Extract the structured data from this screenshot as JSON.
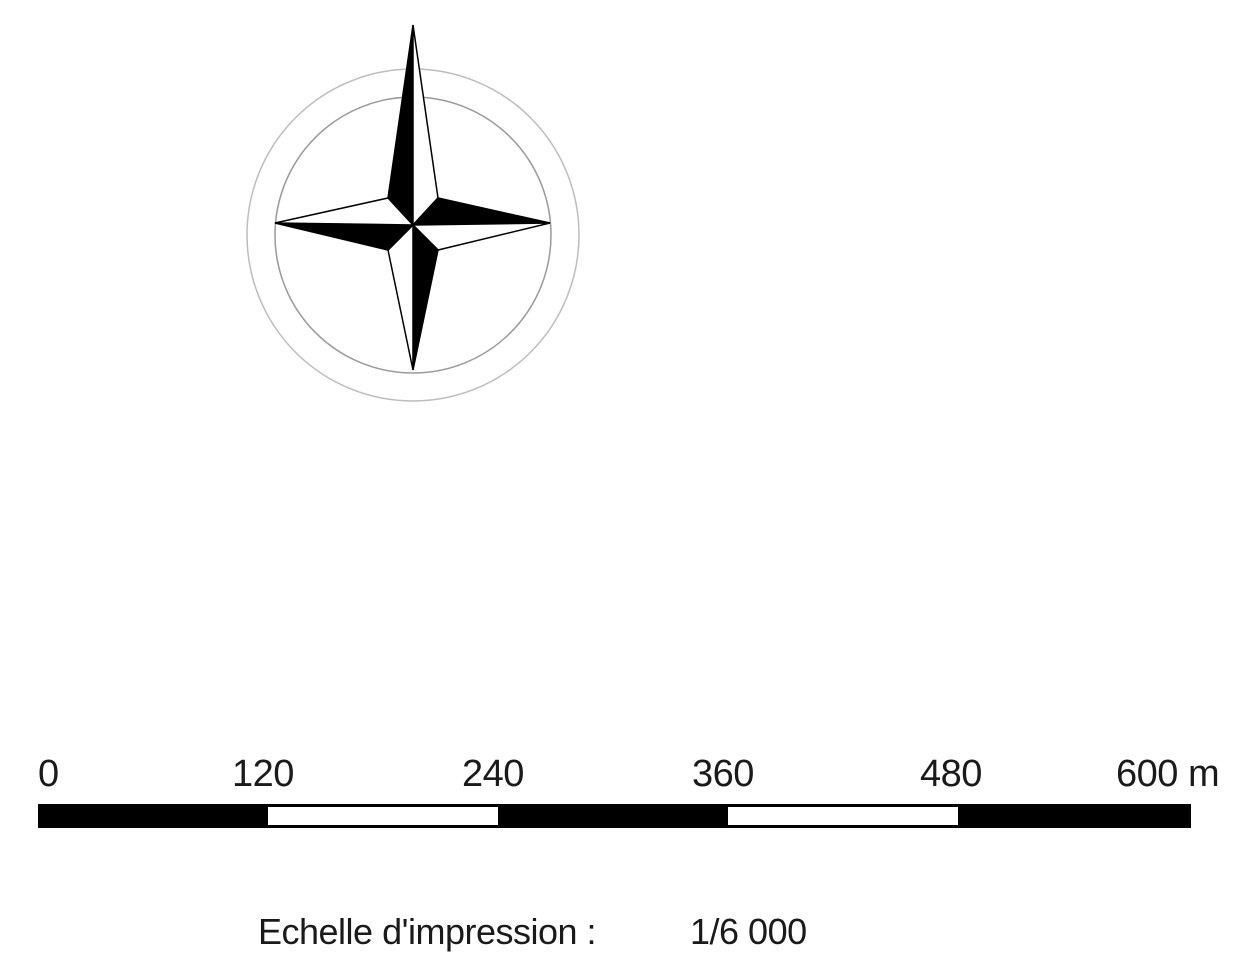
{
  "icons": {
    "compass": "north-arrow-compass-rose"
  },
  "colors": {
    "ink": "#000000",
    "ring": "#bdbdbd",
    "background": "#ffffff"
  },
  "scale_bar": {
    "labels": [
      "0",
      "120",
      "240",
      "360",
      "480",
      "600 m"
    ],
    "unit": "m",
    "segments": [
      "black",
      "white",
      "black",
      "white",
      "black"
    ]
  },
  "print_scale": {
    "label": "Echelle d'impression :",
    "value": "1/6 000"
  }
}
